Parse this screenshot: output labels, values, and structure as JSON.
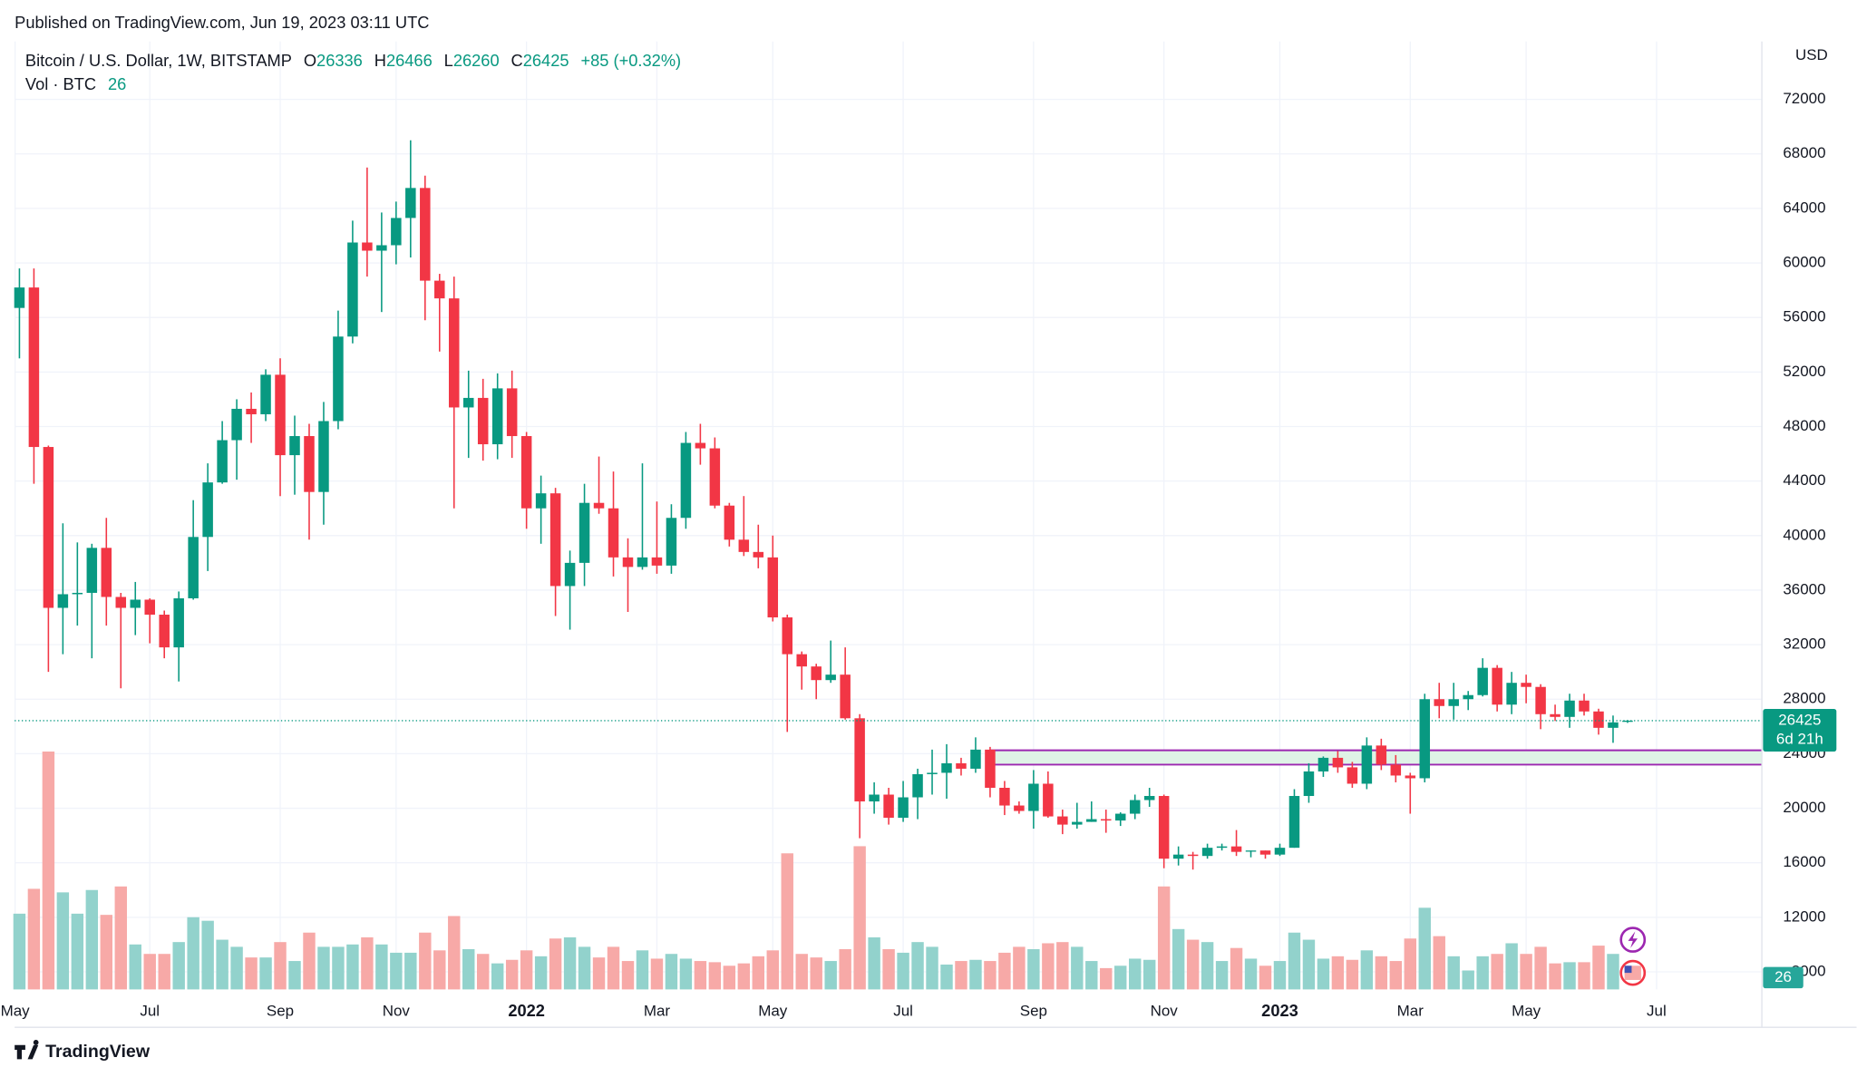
{
  "chart_data": {
    "type": "candlestick",
    "published": "Published on TradingView.com, Jun 19, 2023 03:11 UTC",
    "symbol": "Bitcoin / U.S. Dollar, 1W, BITSTAMP",
    "ohlc_labels": [
      "O",
      "H",
      "L",
      "C"
    ],
    "change": "+85 (+0.32%)",
    "volume_label": "Vol · BTC",
    "currency": "USD",
    "countdown": "6d 21h",
    "brand": "TradingView",
    "colors": {
      "up": "#089981",
      "down": "#f23645",
      "volume_up": "#92d2cc",
      "volume_down": "#f7a9a7",
      "zone_line": "#9c27b0",
      "zone_fill": "#dff3e6"
    },
    "x": [
      0,
      1,
      2,
      3,
      4,
      5,
      6,
      7,
      8,
      9,
      10,
      11,
      12,
      13,
      14,
      15,
      16,
      17,
      18,
      19,
      20,
      21,
      22,
      23,
      24,
      25,
      26,
      27,
      28,
      29,
      30,
      31,
      32,
      33,
      34,
      35,
      36,
      37,
      38,
      39,
      40,
      41,
      42,
      43,
      44,
      45,
      46,
      47,
      48,
      49,
      50,
      51,
      52,
      53,
      54,
      55,
      56,
      57,
      58,
      59,
      60,
      61,
      62,
      63,
      64,
      65,
      66,
      67,
      68,
      69,
      70,
      71,
      72,
      73,
      74,
      75,
      76,
      77,
      78,
      79,
      80,
      81,
      82,
      83,
      84,
      85,
      86,
      87,
      88,
      89,
      90,
      91,
      92,
      93,
      94,
      95,
      96,
      97,
      98,
      99,
      100,
      101,
      102,
      103,
      104,
      105,
      106,
      107,
      108,
      109,
      110,
      111
    ],
    "open": [
      56700,
      58200,
      46500,
      34700,
      35700,
      35800,
      39100,
      35500,
      34700,
      35300,
      34200,
      31800,
      35400,
      39900,
      43900,
      47000,
      49300,
      48900,
      51800,
      45900,
      47300,
      43200,
      48400,
      54600,
      61500,
      60900,
      61300,
      63300,
      65500,
      58700,
      57400,
      49400,
      50100,
      46700,
      50800,
      47300,
      42000,
      43100,
      36300,
      38000,
      42400,
      42000,
      38400,
      37700,
      38400,
      37800,
      41300,
      46800,
      46400,
      42200,
      39700,
      38800,
      38400,
      34000,
      31300,
      30400,
      29400,
      29800,
      26600,
      20500,
      21000,
      19300,
      20800,
      22500,
      22600,
      23300,
      22900,
      24300,
      21500,
      20200,
      19800,
      21800,
      19400,
      18800,
      19000,
      19200,
      19100,
      19600,
      20600,
      20900,
      16300,
      16600,
      16500,
      17100,
      17200,
      16900,
      16900,
      16600,
      17100,
      20900,
      22700,
      23700,
      23000,
      21800,
      24600,
      23200,
      22400,
      22200,
      28000,
      27500,
      28000,
      28300,
      30300,
      27600,
      29200,
      28900,
      26900,
      26700,
      27900,
      27100,
      25900,
      26336
    ],
    "high": [
      59600,
      59600,
      46600,
      40900,
      39500,
      39400,
      41300,
      35800,
      36600,
      35400,
      34500,
      35900,
      42600,
      45300,
      48400,
      50000,
      50500,
      52200,
      53000,
      48800,
      48200,
      49800,
      56500,
      63100,
      67000,
      63700,
      64500,
      69000,
      66400,
      59200,
      59000,
      52100,
      51500,
      51900,
      52100,
      47600,
      44400,
      43500,
      38900,
      43800,
      45800,
      44700,
      39800,
      45300,
      42500,
      42300,
      47600,
      48200,
      47200,
      42400,
      42900,
      40800,
      40000,
      34200,
      31500,
      30600,
      32300,
      31800,
      26900,
      21900,
      21500,
      22000,
      22900,
      24300,
      24700,
      23700,
      25200,
      24500,
      22000,
      20500,
      22800,
      22700,
      19900,
      20400,
      20500,
      19900,
      19700,
      21000,
      21500,
      21000,
      17200,
      16800,
      17400,
      17400,
      18400,
      16900,
      16900,
      17400,
      21400,
      23300,
      23800,
      24200,
      23400,
      25200,
      25100,
      23900,
      22600,
      28400,
      29200,
      29200,
      28600,
      31000,
      30500,
      30000,
      29800,
      29100,
      27600,
      28400,
      28400,
      27300,
      26800,
      26466
    ],
    "low": [
      53000,
      43800,
      30000,
      31300,
      33400,
      31000,
      33400,
      28800,
      32700,
      32100,
      31000,
      29300,
      35300,
      37400,
      43800,
      44100,
      46800,
      48400,
      42900,
      43000,
      39700,
      40800,
      47800,
      54100,
      59000,
      56400,
      59900,
      60400,
      55800,
      53500,
      42000,
      45700,
      45500,
      45600,
      45700,
      40500,
      39400,
      34100,
      33100,
      36300,
      41600,
      37000,
      34400,
      37500,
      37200,
      37200,
      40500,
      45200,
      42000,
      39200,
      38500,
      37600,
      33700,
      25600,
      28700,
      28000,
      29200,
      26500,
      17800,
      19600,
      18800,
      19000,
      19200,
      21000,
      20700,
      22400,
      22600,
      20800,
      19500,
      19600,
      18500,
      19300,
      18100,
      18500,
      19000,
      18200,
      18700,
      19200,
      20100,
      15600,
      15800,
      15500,
      16300,
      16900,
      16500,
      16400,
      16300,
      16500,
      17100,
      20400,
      22300,
      22600,
      21500,
      21400,
      22800,
      21900,
      19600,
      21900,
      26600,
      26500,
      27200,
      28200,
      27100,
      26900,
      27700,
      25800,
      26400,
      25900,
      26800,
      25400,
      24800,
      26260
    ],
    "close": [
      58200,
      46500,
      34700,
      35700,
      35800,
      39100,
      35500,
      34700,
      35300,
      34200,
      31800,
      35400,
      39900,
      43900,
      47000,
      49300,
      48900,
      51800,
      45900,
      47300,
      43200,
      48400,
      54600,
      61500,
      60900,
      61300,
      63300,
      65500,
      58700,
      57400,
      49400,
      50100,
      46700,
      50800,
      47300,
      42000,
      43100,
      36300,
      38000,
      42400,
      42000,
      38400,
      37700,
      38400,
      37800,
      41300,
      46800,
      46400,
      42200,
      39700,
      38800,
      38400,
      34000,
      31300,
      30400,
      29400,
      29800,
      26600,
      20500,
      21000,
      19300,
      20800,
      22500,
      22600,
      23300,
      22900,
      24300,
      21500,
      20200,
      19800,
      21800,
      19400,
      18800,
      19000,
      19200,
      19100,
      19600,
      20600,
      20900,
      16300,
      16600,
      16500,
      17100,
      17200,
      16800,
      16900,
      16600,
      17100,
      20900,
      22700,
      23700,
      23000,
      21800,
      24600,
      23200,
      22400,
      22200,
      28000,
      27500,
      28000,
      28300,
      30300,
      27600,
      29200,
      28900,
      26900,
      26700,
      27900,
      27100,
      25900,
      26300,
      26425
    ],
    "volume": [
      38400,
      51000,
      120600,
      49200,
      38400,
      50400,
      37800,
      52200,
      22800,
      18000,
      18000,
      24000,
      36600,
      34800,
      25200,
      21600,
      16200,
      16200,
      24000,
      14400,
      28800,
      21600,
      21600,
      22800,
      26400,
      22800,
      18600,
      18600,
      28800,
      19800,
      37200,
      20400,
      18000,
      13200,
      15000,
      19800,
      16800,
      25800,
      26400,
      21600,
      16200,
      21600,
      14400,
      19800,
      15600,
      18000,
      15600,
      14400,
      13800,
      12000,
      13200,
      16800,
      19800,
      69000,
      18000,
      16200,
      14400,
      20400,
      72600,
      26400,
      20400,
      18600,
      24000,
      21600,
      12600,
      14400,
      15000,
      14400,
      18600,
      21600,
      20400,
      23400,
      24000,
      21600,
      14400,
      10800,
      12000,
      15600,
      15000,
      52200,
      30600,
      25200,
      24000,
      14400,
      21000,
      15600,
      12000,
      14400,
      28800,
      25200,
      15600,
      16800,
      15000,
      19800,
      16800,
      14400,
      25800,
      41400,
      27000,
      16800,
      9600,
      16800,
      18000,
      23400,
      18000,
      21600,
      13200,
      13800,
      13800,
      22200,
      18000,
      26
    ],
    "xlim": [
      -0.33,
      120.27
    ],
    "xticks": [
      {
        "value": -0.3,
        "label": "May"
      },
      {
        "value": 9,
        "label": "Jul"
      },
      {
        "value": 18,
        "label": "Sep"
      },
      {
        "value": 26,
        "label": "Nov"
      },
      {
        "value": 35,
        "label": "2022"
      },
      {
        "value": 44,
        "label": "Mar"
      },
      {
        "value": 52,
        "label": "May"
      },
      {
        "value": 61,
        "label": "Jul"
      },
      {
        "value": 70,
        "label": "Sep"
      },
      {
        "value": 79,
        "label": "Nov"
      },
      {
        "value": 87,
        "label": "2023"
      },
      {
        "value": 96,
        "label": "Mar"
      },
      {
        "value": 104,
        "label": "May"
      },
      {
        "value": 113,
        "label": "Jul"
      }
    ],
    "ylim": [
      6710,
      76250
    ],
    "yticks": [
      8000,
      12000,
      16000,
      20000,
      24000,
      28000,
      32000,
      36000,
      40000,
      44000,
      48000,
      52000,
      56000,
      60000,
      64000,
      68000,
      72000
    ],
    "vlim": [
      0,
      480600
    ],
    "grid": true,
    "zones": [
      {
        "start": 67,
        "from": 23200,
        "to": 24250
      }
    ]
  }
}
